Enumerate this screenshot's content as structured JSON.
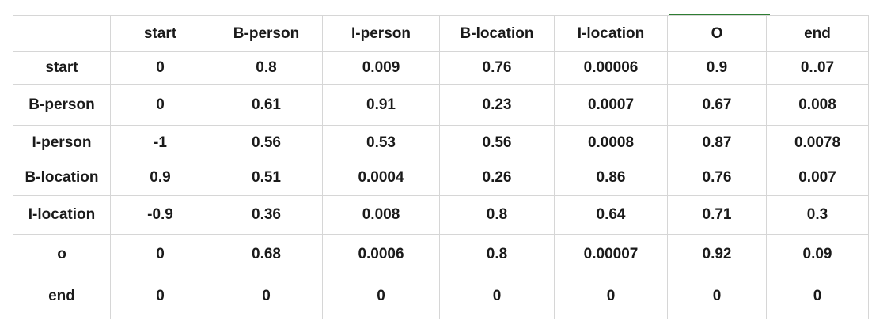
{
  "table": {
    "corner": "",
    "columns": [
      "start",
      "B-person",
      "I-person",
      "B-location",
      "I-location",
      "O",
      "end"
    ],
    "rows": [
      {
        "label": "start",
        "cells": [
          "0",
          "0.8",
          "0.009",
          "0.76",
          "0.00006",
          "0.9",
          "0..07"
        ]
      },
      {
        "label": "B-person",
        "cells": [
          "0",
          "0.61",
          "0.91",
          "0.23",
          "0.0007",
          "0.67",
          "0.008"
        ]
      },
      {
        "label": "I-person",
        "cells": [
          "-1",
          "0.56",
          "0.53",
          "0.56",
          "0.0008",
          "0.87",
          "0.0078"
        ]
      },
      {
        "label": "B-location",
        "cells": [
          "0.9",
          "0.51",
          "0.0004",
          "0.26",
          "0.86",
          "0.76",
          "0.007"
        ]
      },
      {
        "label": "I-location",
        "cells": [
          "-0.9",
          "0.36",
          "0.008",
          "0.8",
          "0.64",
          "0.71",
          "0.3"
        ]
      },
      {
        "label": "o",
        "cells": [
          "0",
          "0.68",
          "0.0006",
          "0.8",
          "0.00007",
          "0.92",
          "0.09"
        ]
      },
      {
        "label": "end",
        "cells": [
          "0",
          "0",
          "0",
          "0",
          "0",
          "0",
          "0"
        ]
      }
    ]
  },
  "colors": {
    "gridline": "#d6d6d6",
    "text": "#1a1a1a",
    "selected_column_marker": "#2e7d32"
  }
}
